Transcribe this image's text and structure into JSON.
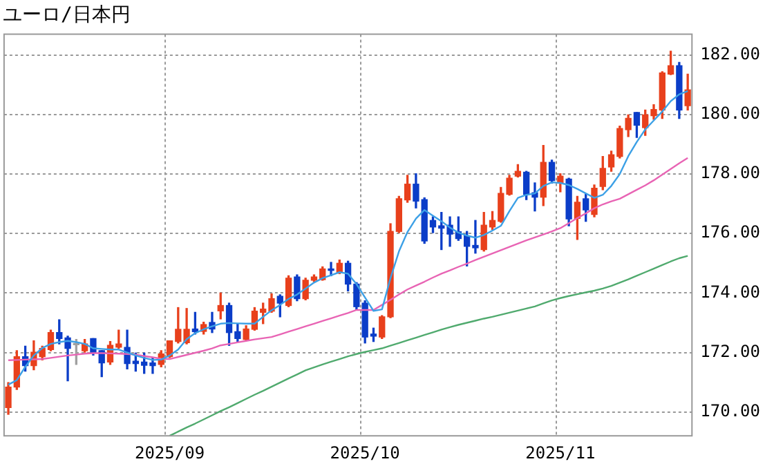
{
  "chart_data": {
    "type": "candlestick",
    "title": "ユーロ/日本円",
    "categories": [
      null,
      null,
      null,
      null,
      null,
      null,
      null,
      null,
      null,
      null,
      null,
      null,
      null,
      null,
      null,
      null,
      null,
      null,
      null,
      "2025/09",
      null,
      null,
      null,
      null,
      null,
      null,
      null,
      null,
      null,
      null,
      null,
      null,
      null,
      null,
      null,
      null,
      null,
      null,
      null,
      null,
      null,
      null,
      "2025/10",
      null,
      null,
      null,
      null,
      null,
      null,
      null,
      null,
      null,
      null,
      null,
      null,
      null,
      null,
      null,
      null,
      null,
      null,
      null,
      null,
      null,
      null,
      "2025/11",
      null,
      null,
      null,
      null,
      null,
      null,
      null,
      null,
      null,
      null,
      null,
      null,
      null,
      null,
      null
    ],
    "ohlc": [
      [
        170.15,
        170.99,
        169.92,
        170.84
      ],
      [
        170.84,
        172.06,
        170.76,
        171.86
      ],
      [
        171.86,
        172.21,
        171.37,
        171.56
      ],
      [
        171.56,
        172.39,
        171.42,
        172.01
      ],
      [
        171.86,
        172.21,
        171.75,
        172.14
      ],
      [
        172.1,
        172.75,
        172.06,
        172.67
      ],
      [
        172.67,
        173.1,
        172.29,
        172.47
      ],
      [
        172.49,
        172.55,
        171.05,
        172.14
      ],
      [
        172.26,
        172.44,
        171.6,
        172.26
      ],
      [
        172.06,
        172.44,
        172.01,
        172.29
      ],
      [
        172.47,
        172.47,
        171.91,
        171.98
      ],
      [
        172.06,
        172.06,
        171.19,
        171.65
      ],
      [
        171.68,
        172.37,
        171.6,
        172.24
      ],
      [
        172.18,
        172.75,
        172.14,
        172.29
      ],
      [
        172.17,
        172.75,
        171.45,
        171.63
      ],
      [
        171.71,
        171.98,
        171.37,
        171.63
      ],
      [
        171.68,
        171.98,
        171.3,
        171.57
      ],
      [
        171.65,
        171.83,
        171.3,
        171.56
      ],
      [
        171.6,
        172.06,
        171.52,
        171.95
      ],
      [
        171.86,
        172.39,
        171.83,
        172.39
      ],
      [
        172.37,
        173.51,
        172.32,
        172.78
      ],
      [
        172.33,
        173.48,
        172.29,
        172.78
      ],
      [
        172.79,
        173.35,
        172.62,
        172.7
      ],
      [
        172.71,
        173.02,
        172.62,
        172.94
      ],
      [
        173.01,
        173.35,
        172.67,
        172.79
      ],
      [
        173.4,
        174.0,
        173.13,
        173.58
      ],
      [
        173.58,
        173.66,
        172.24,
        172.67
      ],
      [
        172.7,
        172.97,
        172.37,
        172.47
      ],
      [
        172.44,
        172.9,
        172.41,
        172.79
      ],
      [
        172.78,
        173.51,
        172.75,
        173.39
      ],
      [
        173.35,
        173.66,
        172.97,
        173.46
      ],
      [
        173.39,
        173.97,
        173.35,
        173.81
      ],
      [
        173.89,
        173.94,
        173.2,
        173.66
      ],
      [
        173.58,
        174.58,
        173.54,
        174.5
      ],
      [
        174.54,
        174.61,
        173.74,
        173.81
      ],
      [
        173.81,
        174.5,
        173.77,
        174.43
      ],
      [
        174.43,
        174.61,
        174.38,
        174.54
      ],
      [
        174.45,
        174.88,
        174.43,
        174.81
      ],
      [
        174.81,
        175.03,
        174.58,
        174.76
      ],
      [
        174.68,
        175.11,
        174.65,
        175.0
      ],
      [
        175.0,
        175.07,
        174.07,
        174.3
      ],
      [
        174.3,
        174.35,
        173.43,
        173.54
      ],
      [
        173.66,
        173.74,
        172.32,
        172.52
      ],
      [
        172.62,
        172.82,
        172.37,
        172.55
      ],
      [
        172.52,
        173.24,
        172.47,
        173.2
      ],
      [
        173.2,
        176.33,
        173.17,
        176.07
      ],
      [
        176.07,
        177.25,
        176.03,
        177.17
      ],
      [
        177.13,
        177.96,
        177.05,
        177.66
      ],
      [
        177.66,
        178.01,
        176.86,
        177.09
      ],
      [
        177.14,
        177.2,
        175.67,
        175.75
      ],
      [
        176.44,
        176.56,
        176.03,
        176.22
      ],
      [
        176.26,
        176.71,
        175.46,
        176.18
      ],
      [
        176.28,
        176.56,
        175.57,
        175.98
      ],
      [
        176.06,
        176.56,
        175.77,
        175.83
      ],
      [
        175.92,
        176.07,
        174.91,
        175.57
      ],
      [
        175.6,
        176.44,
        175.34,
        175.52
      ],
      [
        175.46,
        176.71,
        175.41,
        176.28
      ],
      [
        176.22,
        176.74,
        176.13,
        176.44
      ],
      [
        176.41,
        177.55,
        176.38,
        177.35
      ],
      [
        177.32,
        177.96,
        177.29,
        177.86
      ],
      [
        177.93,
        178.32,
        177.9,
        178.09
      ],
      [
        178.06,
        178.09,
        177.14,
        177.32
      ],
      [
        177.37,
        177.7,
        176.76,
        177.22
      ],
      [
        177.22,
        178.96,
        176.94,
        178.39
      ],
      [
        178.39,
        178.47,
        177.7,
        177.78
      ],
      [
        177.7,
        178.01,
        177.4,
        177.93
      ],
      [
        177.83,
        177.86,
        176.26,
        176.49
      ],
      [
        176.51,
        177.25,
        175.8,
        177.05
      ],
      [
        177.17,
        177.32,
        176.41,
        176.79
      ],
      [
        176.64,
        177.63,
        176.56,
        177.52
      ],
      [
        177.58,
        178.59,
        177.47,
        178.19
      ],
      [
        178.24,
        178.77,
        178.09,
        178.65
      ],
      [
        178.59,
        179.61,
        178.54,
        179.53
      ],
      [
        179.49,
        179.99,
        179.26,
        179.87
      ],
      [
        180.07,
        180.07,
        179.23,
        179.64
      ],
      [
        179.56,
        180.15,
        179.3,
        179.99
      ],
      [
        179.96,
        180.33,
        179.84,
        180.17
      ],
      [
        180.15,
        181.44,
        179.87,
        181.4
      ],
      [
        181.36,
        182.13,
        181.34,
        181.64
      ],
      [
        181.64,
        181.75,
        179.87,
        180.15
      ],
      [
        180.3,
        181.36,
        180.15,
        180.83
      ]
    ],
    "colors": [
      "#e8401c",
      "#e8401c",
      "#0b3dc8",
      "#e8401c",
      "#e8401c",
      "#e8401c",
      "#0b3dc8",
      "#0b3dc8",
      "#a0a0a0",
      "#e8401c",
      "#0b3dc8",
      "#0b3dc8",
      "#e8401c",
      "#e8401c",
      "#0b3dc8",
      "#0b3dc8",
      "#0b3dc8",
      "#0b3dc8",
      "#e8401c",
      "#e8401c",
      "#e8401c",
      "#e8401c",
      "#0b3dc8",
      "#e8401c",
      "#0b3dc8",
      "#e8401c",
      "#0b3dc8",
      "#0b3dc8",
      "#e8401c",
      "#e8401c",
      "#e8401c",
      "#e8401c",
      "#0b3dc8",
      "#e8401c",
      "#0b3dc8",
      "#e8401c",
      "#e8401c",
      "#e8401c",
      "#0b3dc8",
      "#e8401c",
      "#0b3dc8",
      "#0b3dc8",
      "#0b3dc8",
      "#0b3dc8",
      "#e8401c",
      "#e8401c",
      "#e8401c",
      "#e8401c",
      "#0b3dc8",
      "#0b3dc8",
      "#0b3dc8",
      "#0b3dc8",
      "#0b3dc8",
      "#0b3dc8",
      "#0b3dc8",
      "#0b3dc8",
      "#e8401c",
      "#e8401c",
      "#e8401c",
      "#e8401c",
      "#e8401c",
      "#0b3dc8",
      "#0b3dc8",
      "#e8401c",
      "#0b3dc8",
      "#e8401c",
      "#0b3dc8",
      "#e8401c",
      "#0b3dc8",
      "#e8401c",
      "#e8401c",
      "#e8401c",
      "#e8401c",
      "#e8401c",
      "#0b3dc8",
      "#e8401c",
      "#e8401c",
      "#e8401c",
      "#e8401c",
      "#0b3dc8",
      "#e8401c"
    ],
    "series": [
      {
        "type": "line",
        "color": "#3ca0e6",
        "values": [
          170.92,
          171.07,
          171.52,
          171.9,
          172.15,
          172.29,
          172.35,
          172.39,
          172.35,
          172.29,
          172.14,
          172.12,
          172.1,
          172.1,
          172.0,
          171.9,
          171.82,
          171.75,
          171.76,
          171.9,
          172.1,
          172.45,
          172.65,
          172.78,
          172.88,
          172.97,
          172.99,
          172.98,
          172.97,
          172.97,
          173.2,
          173.42,
          173.6,
          173.8,
          173.95,
          174.15,
          174.35,
          174.5,
          174.6,
          174.7,
          174.65,
          174.3,
          173.85,
          173.4,
          173.45,
          174.5,
          175.4,
          176.05,
          176.5,
          176.79,
          176.6,
          176.41,
          176.2,
          176.03,
          175.93,
          175.86,
          175.95,
          176.1,
          176.26,
          176.75,
          177.2,
          177.3,
          177.35,
          177.6,
          177.72,
          177.7,
          177.63,
          177.5,
          177.35,
          177.2,
          177.3,
          177.6,
          178.0,
          178.6,
          179.08,
          179.5,
          179.8,
          180.1,
          180.45,
          180.68,
          180.79
        ]
      },
      {
        "type": "line",
        "color": "#e864b4",
        "values": [
          171.74,
          171.75,
          171.76,
          171.77,
          171.78,
          171.82,
          171.86,
          171.9,
          171.93,
          171.96,
          171.98,
          171.98,
          171.97,
          171.96,
          171.95,
          171.93,
          171.88,
          171.84,
          171.79,
          171.78,
          171.85,
          171.92,
          171.99,
          172.06,
          172.14,
          172.24,
          172.29,
          172.34,
          172.39,
          172.44,
          172.48,
          172.52,
          172.61,
          172.7,
          172.79,
          172.88,
          172.97,
          173.06,
          173.15,
          173.24,
          173.33,
          173.43,
          173.43,
          173.43,
          173.6,
          173.77,
          173.95,
          174.12,
          174.25,
          174.38,
          174.52,
          174.65,
          174.76,
          174.88,
          174.99,
          175.11,
          175.22,
          175.33,
          175.44,
          175.55,
          175.66,
          175.77,
          175.87,
          175.97,
          176.07,
          176.18,
          176.35,
          176.52,
          176.68,
          176.85,
          176.98,
          177.08,
          177.17,
          177.32,
          177.47,
          177.62,
          177.79,
          177.98,
          178.17,
          178.36,
          178.54
        ]
      },
      {
        "type": "line",
        "color": "#50aa6e",
        "values": [
          null,
          null,
          null,
          null,
          null,
          null,
          null,
          null,
          null,
          null,
          null,
          null,
          null,
          null,
          null,
          null,
          null,
          null,
          null,
          169.2,
          169.34,
          169.48,
          169.61,
          169.75,
          169.89,
          170.03,
          170.16,
          170.3,
          170.44,
          170.58,
          170.71,
          170.85,
          170.99,
          171.13,
          171.26,
          171.4,
          171.5,
          171.6,
          171.69,
          171.78,
          171.87,
          171.95,
          172.02,
          172.08,
          172.14,
          172.23,
          172.32,
          172.41,
          172.5,
          172.59,
          172.68,
          172.77,
          172.85,
          172.93,
          173.0,
          173.07,
          173.14,
          173.2,
          173.27,
          173.34,
          173.41,
          173.48,
          173.55,
          173.65,
          173.75,
          173.83,
          173.9,
          173.96,
          174.02,
          174.08,
          174.15,
          174.24,
          174.35,
          174.46,
          174.58,
          174.7,
          174.82,
          174.94,
          175.06,
          175.17,
          175.25
        ]
      }
    ],
    "ylim": [
      169.2,
      182.7
    ],
    "yticks": [
      {
        "value": 170,
        "label": "170.00"
      },
      {
        "value": 172,
        "label": "172.00"
      },
      {
        "value": 174,
        "label": "174.00"
      },
      {
        "value": 176,
        "label": "176.00"
      },
      {
        "value": 178,
        "label": "178.00"
      },
      {
        "value": 180,
        "label": "180.00"
      },
      {
        "value": 182,
        "label": "182.00"
      }
    ],
    "grid": true
  }
}
